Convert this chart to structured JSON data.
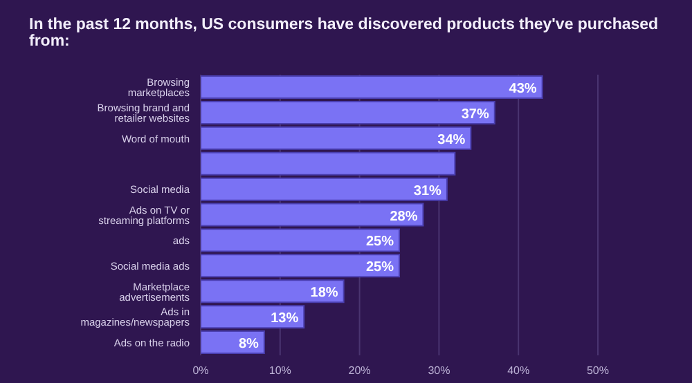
{
  "chart_data": {
    "type": "bar",
    "orientation": "horizontal",
    "title": "In the past 12 months, US consumers have discovered products they've purchased from:",
    "categories": [
      "Browsing marketplaces",
      "Browsing brand and retailer websites",
      "Word of mouth",
      null,
      "Social media",
      "Ads on TV or streaming platforms",
      "ads",
      "Social media ads",
      "Marketplace advertisements",
      "Ads in magazines/newspapers",
      "Ads on the radio"
    ],
    "values": [
      43,
      37,
      34,
      32,
      31,
      28,
      25,
      25,
      18,
      13,
      8
    ],
    "value_labels": [
      "43%",
      "37%",
      "34%",
      null,
      "31%",
      "28%",
      "25%",
      "25%",
      "18%",
      "13%",
      "8%"
    ],
    "color": "#7a72f4",
    "xlim": [
      0,
      50
    ],
    "xticks": [
      {
        "value": 0,
        "label": "0%"
      },
      {
        "value": 10,
        "label": "10%"
      },
      {
        "value": 20,
        "label": "20%"
      },
      {
        "value": 30,
        "label": "30%"
      },
      {
        "value": 40,
        "label": "40%"
      },
      {
        "value": 50,
        "label": "50%"
      }
    ],
    "grid": "x"
  }
}
